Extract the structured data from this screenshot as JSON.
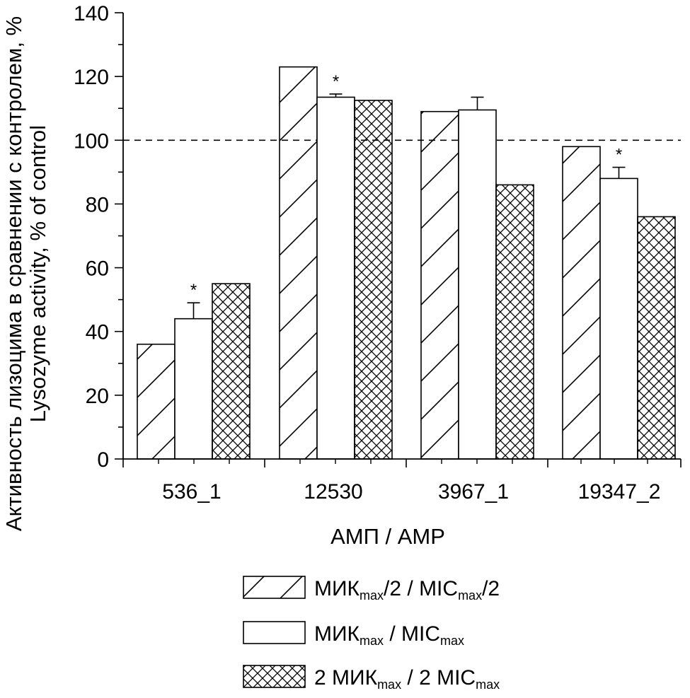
{
  "chart_data": {
    "type": "bar",
    "categories": [
      "536_1",
      "12530",
      "3967_1",
      "19347_2"
    ],
    "series": [
      {
        "name": "МИКmax/2 / MICmax/2",
        "pattern": "diagonal-hatch",
        "values": [
          36,
          123,
          109,
          98
        ],
        "errors": [
          0,
          0,
          0,
          0
        ]
      },
      {
        "name": "МИКmax / MICmax",
        "pattern": "solid-white",
        "values": [
          44,
          113.5,
          109.5,
          88
        ],
        "errors": [
          5,
          1,
          4,
          3.5
        ]
      },
      {
        "name": "2 МИКmax / 2 MICmax",
        "pattern": "cross-hatch",
        "values": [
          55,
          112.5,
          86,
          76
        ],
        "errors": [
          0,
          0,
          0,
          0
        ]
      }
    ],
    "significance": [
      {
        "category": "536_1",
        "series": 1,
        "mark": "*"
      },
      {
        "category": "12530",
        "series": 1,
        "mark": "*"
      },
      {
        "category": "19347_2",
        "series": 1,
        "mark": "*"
      }
    ],
    "reference_line": {
      "value": 100,
      "style": "dashed"
    },
    "ylim": [
      0,
      140
    ],
    "yticks": [
      0,
      20,
      40,
      60,
      80,
      100,
      120,
      140
    ],
    "ylabel_line1": "Активность лизоцима в сравнении с контролем, %",
    "ylabel_line2": "Lysozyme activity, % of control",
    "xlabel": "АМП / AMP",
    "legend": {
      "placement": "bottom",
      "entries": [
        {
          "main1": "МИК",
          "sub1": "max",
          "main2": "/2 / MIC",
          "sub2": "max",
          "main3": "/2"
        },
        {
          "main1": "МИК",
          "sub1": "max",
          "main2": " / MIC",
          "sub2": "max",
          "main3": ""
        },
        {
          "main1": "2 МИК",
          "sub1": "max",
          "main2": " / 2 MIC",
          "sub2": "max",
          "main3": ""
        }
      ]
    }
  }
}
